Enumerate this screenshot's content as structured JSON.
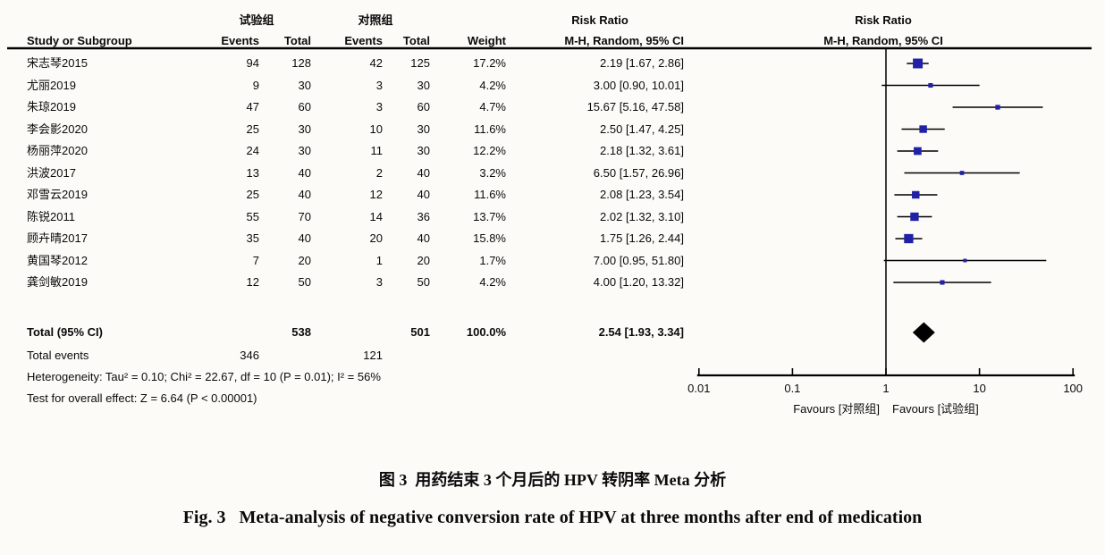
{
  "figure": {
    "header": {
      "group_exp": "试验组",
      "group_ctl": "对照组",
      "risk_ratio": "Risk Ratio",
      "mh_ci": "M-H, Random, 95% CI",
      "study": "Study or Subgroup",
      "events": "Events",
      "total": "Total",
      "weight": "Weight"
    }
  },
  "chart_data": {
    "type": "forest",
    "effect_measure": "Risk Ratio",
    "method": "M-H, Random, 95% CI",
    "x_scale": "log10",
    "x_range": [
      0.01,
      100
    ],
    "x_ticks": [
      0.01,
      0.1,
      1,
      10,
      100
    ],
    "favours_left": "Favours [对照组]",
    "favours_right": "Favours [试验组]",
    "marker_color": "#2121a8",
    "diamond_color": "#000000",
    "line_color": "#000000",
    "studies": [
      {
        "name": "宋志琴2015",
        "events_exp": 94,
        "total_exp": 128,
        "events_ctl": 42,
        "total_ctl": 125,
        "weight": "17.2%",
        "weight_pct": 17.2,
        "rr": 2.19,
        "ci_low": 1.67,
        "ci_high": 2.86,
        "rr_text": "2.19 [1.67, 2.86]"
      },
      {
        "name": "尤丽2019",
        "events_exp": 9,
        "total_exp": 30,
        "events_ctl": 3,
        "total_ctl": 30,
        "weight": "4.2%",
        "weight_pct": 4.2,
        "rr": 3.0,
        "ci_low": 0.9,
        "ci_high": 10.01,
        "rr_text": "3.00 [0.90, 10.01]"
      },
      {
        "name": "朱琼2019",
        "events_exp": 47,
        "total_exp": 60,
        "events_ctl": 3,
        "total_ctl": 60,
        "weight": "4.7%",
        "weight_pct": 4.7,
        "rr": 15.67,
        "ci_low": 5.16,
        "ci_high": 47.58,
        "rr_text": "15.67 [5.16, 47.58]"
      },
      {
        "name": "李会影2020",
        "events_exp": 25,
        "total_exp": 30,
        "events_ctl": 10,
        "total_ctl": 30,
        "weight": "11.6%",
        "weight_pct": 11.6,
        "rr": 2.5,
        "ci_low": 1.47,
        "ci_high": 4.25,
        "rr_text": "2.50 [1.47, 4.25]"
      },
      {
        "name": "杨丽萍2020",
        "events_exp": 24,
        "total_exp": 30,
        "events_ctl": 11,
        "total_ctl": 30,
        "weight": "12.2%",
        "weight_pct": 12.2,
        "rr": 2.18,
        "ci_low": 1.32,
        "ci_high": 3.61,
        "rr_text": "2.18 [1.32, 3.61]"
      },
      {
        "name": "洪波2017",
        "events_exp": 13,
        "total_exp": 40,
        "events_ctl": 2,
        "total_ctl": 40,
        "weight": "3.2%",
        "weight_pct": 3.2,
        "rr": 6.5,
        "ci_low": 1.57,
        "ci_high": 26.96,
        "rr_text": "6.50 [1.57, 26.96]"
      },
      {
        "name": "邓雪云2019",
        "events_exp": 25,
        "total_exp": 40,
        "events_ctl": 12,
        "total_ctl": 40,
        "weight": "11.6%",
        "weight_pct": 11.6,
        "rr": 2.08,
        "ci_low": 1.23,
        "ci_high": 3.54,
        "rr_text": "2.08 [1.23, 3.54]"
      },
      {
        "name": "陈锐2011",
        "events_exp": 55,
        "total_exp": 70,
        "events_ctl": 14,
        "total_ctl": 36,
        "weight": "13.7%",
        "weight_pct": 13.7,
        "rr": 2.02,
        "ci_low": 1.32,
        "ci_high": 3.1,
        "rr_text": "2.02 [1.32, 3.10]"
      },
      {
        "name": "顾卉晴2017",
        "events_exp": 35,
        "total_exp": 40,
        "events_ctl": 20,
        "total_ctl": 40,
        "weight": "15.8%",
        "weight_pct": 15.8,
        "rr": 1.75,
        "ci_low": 1.26,
        "ci_high": 2.44,
        "rr_text": "1.75 [1.26, 2.44]"
      },
      {
        "name": "黄国琴2012",
        "events_exp": 7,
        "total_exp": 20,
        "events_ctl": 1,
        "total_ctl": 20,
        "weight": "1.7%",
        "weight_pct": 1.7,
        "rr": 7.0,
        "ci_low": 0.95,
        "ci_high": 51.8,
        "rr_text": "7.00 [0.95, 51.80]"
      },
      {
        "name": "龚剑敏2019",
        "events_exp": 12,
        "total_exp": 50,
        "events_ctl": 3,
        "total_ctl": 50,
        "weight": "4.2%",
        "weight_pct": 4.2,
        "rr": 4.0,
        "ci_low": 1.2,
        "ci_high": 13.32,
        "rr_text": "4.00 [1.20, 13.32]"
      }
    ],
    "total": {
      "label": "Total (95% CI)",
      "total_exp": 538,
      "total_ctl": 501,
      "weight": "100.0%",
      "rr": 2.54,
      "ci_low": 1.93,
      "ci_high": 3.34,
      "rr_text": "2.54 [1.93, 3.34]"
    },
    "total_events": {
      "label": "Total events",
      "exp": 346,
      "ctl": 121
    },
    "heterogeneity": "Heterogeneity: Tau² = 0.10; Chi² = 22.67, df = 10 (P = 0.01); I² = 56%",
    "overall_effect": "Test for overall effect: Z = 6.64 (P < 0.00001)"
  },
  "caption": {
    "zh": "图 3  用药结束 3 个月后的 HPV 转阴率 Meta 分析",
    "en": "Fig. 3   Meta-analysis of negative conversion rate of HPV at three months after end of medication"
  }
}
